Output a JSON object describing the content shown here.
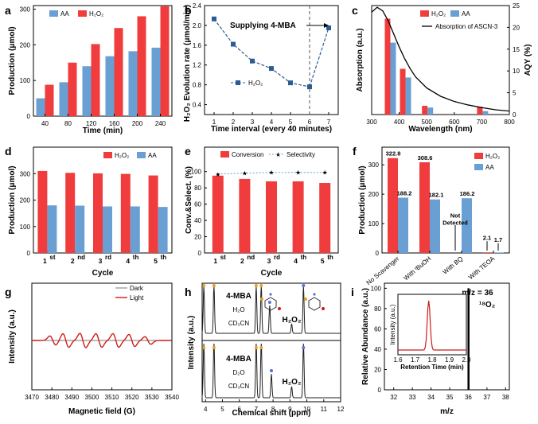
{
  "colors": {
    "red": "#f03c3c",
    "blue": "#6a9fd4",
    "navy": "#2c5d92",
    "dark": "#333333"
  },
  "chart_data": [
    {
      "panel": "a",
      "type": "bar",
      "xlabel": "Time (min)",
      "ylabel": "Production (μmol)",
      "categories": [
        "40",
        "80",
        "120",
        "160",
        "200",
        "240"
      ],
      "series": [
        {
          "name": "AA",
          "values": [
            50,
            95,
            140,
            168,
            182,
            192
          ],
          "color": "blue"
        },
        {
          "name": "H2O2",
          "values": [
            88,
            150,
            202,
            247,
            280,
            308
          ],
          "color": "red"
        }
      ],
      "legend": [
        "AA",
        "H₂O₂"
      ],
      "ylim": [
        0,
        300
      ],
      "yticks": [
        "0",
        "100",
        "200",
        "300"
      ]
    },
    {
      "panel": "b",
      "type": "line",
      "xlabel": "Time interval (every 40 minutes)",
      "ylabel": "H₂O₂ Evolution rate (μmol/min)",
      "x": [
        1,
        2,
        3,
        4,
        5,
        6,
        7
      ],
      "series": [
        {
          "name": "H2O2",
          "values": [
            2.13,
            1.62,
            1.28,
            1.13,
            0.84,
            0.76,
            1.95
          ]
        }
      ],
      "legend": "H₂O₂",
      "annotation": "Supplying 4-MBA",
      "annotation_x": 6,
      "xlim": [
        0.5,
        7.5
      ],
      "ylim": [
        0.2,
        2.4
      ],
      "yticks": [
        "0.4",
        "0.8",
        "1.2",
        "1.6",
        "2.0",
        "2.4"
      ],
      "xticks": [
        "1",
        "2",
        "3",
        "4",
        "5",
        "6",
        "7"
      ]
    },
    {
      "panel": "c",
      "type": "bar",
      "xlabel": "Wavelength (nm)",
      "ylabel": "Absorption (a.u.)",
      "y2label": "AQY (%)",
      "bars": [
        {
          "wavelength": 365,
          "h2o2": 22.0,
          "aa": 16.5
        },
        {
          "wavelength": 420,
          "h2o2": 10.5,
          "aa": 8.5
        },
        {
          "wavelength": 500,
          "h2o2": 2.0,
          "aa": 1.6
        },
        {
          "wavelength": 700,
          "h2o2": 1.8,
          "aa": 0.8
        }
      ],
      "absorption_curve": {
        "name": "Absorption of ASCN-3",
        "x": [
          300,
          320,
          340,
          360,
          380,
          400,
          420,
          440,
          460,
          500,
          550,
          600,
          650,
          700,
          750,
          800
        ],
        "y": [
          23.5,
          24.6,
          23.8,
          21.5,
          18.5,
          15.5,
          12.8,
          10.5,
          8.6,
          6.1,
          4.2,
          3.0,
          2.2,
          1.6,
          1.1,
          0.8
        ]
      },
      "legend": [
        "H₂O₂",
        "AA",
        "Absorption of ASCN-3"
      ],
      "xlim": [
        300,
        800
      ],
      "y2lim": [
        0,
        25
      ],
      "xticks": [
        "300",
        "400",
        "500",
        "600",
        "700",
        "800"
      ],
      "y2ticks": [
        "0",
        "5",
        "10",
        "15",
        "20",
        "25"
      ]
    },
    {
      "panel": "d",
      "type": "bar",
      "xlabel": "Cycle",
      "ylabel": "Production (μmol)",
      "categories": [
        "1",
        "2",
        "3",
        "4",
        "5"
      ],
      "category_suffix": [
        "st",
        "nd",
        "rd",
        "th",
        "th"
      ],
      "series": [
        {
          "name": "H2O2",
          "values": [
            310,
            303,
            301,
            299,
            293
          ],
          "color": "red"
        },
        {
          "name": "AA",
          "values": [
            180,
            179,
            176,
            176,
            174
          ],
          "color": "blue"
        }
      ],
      "legend": [
        "H₂O₂",
        "AA"
      ],
      "ylim": [
        0,
        400
      ],
      "yticks": [
        "0",
        "100",
        "200",
        "300"
      ]
    },
    {
      "panel": "e",
      "type": "bar",
      "xlabel": "Cycle",
      "ylabel": "Conv.&Select. (%)",
      "categories": [
        "1",
        "2",
        "3",
        "4",
        "5"
      ],
      "category_suffix": [
        "st",
        "nd",
        "rd",
        "th",
        "th"
      ],
      "conversion": [
        95,
        91,
        88,
        88,
        86
      ],
      "selectivity": [
        97,
        98,
        99,
        99,
        99
      ],
      "legend": [
        "Conversion",
        "Selectivity"
      ],
      "ylim": [
        0,
        130
      ],
      "yticks": [
        "0",
        "20",
        "40",
        "60",
        "80",
        "100"
      ]
    },
    {
      "panel": "f",
      "type": "bar",
      "ylabel": "Production (μmol)",
      "categories": [
        "No Scavenger",
        "With ᵗBuOH",
        "With BQ",
        "With TEOA"
      ],
      "h2o2": [
        322.8,
        308.6,
        0,
        2.1
      ],
      "aa": [
        188.2,
        182.1,
        186.2,
        1.7
      ],
      "h2o2_labels": [
        "322.8",
        "308.6",
        "",
        "2.1"
      ],
      "aa_labels": [
        "188.2",
        "182.1",
        "186.2",
        "1.7"
      ],
      "not_detected": "Not\nDetected",
      "legend": [
        "H₂O₂",
        "AA"
      ],
      "ylim": [
        0,
        360
      ],
      "yticks": [
        "0",
        "100",
        "200",
        "300"
      ]
    },
    {
      "panel": "g",
      "type": "line",
      "xlabel": "Magnetic field (G)",
      "ylabel": "Intensity (a.u.)",
      "legend": [
        "Dark",
        "Light"
      ],
      "xlim": [
        3470,
        3540
      ],
      "xticks": [
        "3470",
        "3480",
        "3490",
        "3500",
        "3510",
        "3520",
        "3530",
        "3540"
      ]
    },
    {
      "panel": "h",
      "type": "line",
      "xlabel": "Chemical shift (ppm)",
      "ylabel": "Intensity (a.u.)",
      "traces": [
        {
          "label": [
            "4-MBA",
            "H₂O",
            "CD₃CN"
          ],
          "peak": "H₂O₂"
        },
        {
          "label": [
            "4-MBA",
            "D₂O",
            "CD₃CN"
          ],
          "peak": "H₂O₂"
        }
      ],
      "xlim": [
        3.8,
        12
      ],
      "xticks": [
        "4",
        "5",
        "6",
        "7",
        "8",
        "9",
        "10",
        "11",
        "12"
      ]
    },
    {
      "panel": "i",
      "type": "bar",
      "xlabel": "m/z",
      "ylabel": "Relative Abundance (a.u.)",
      "peak": {
        "mz": 36,
        "value": 100
      },
      "annotation": "m/z = 36",
      "species": "¹⁸O₂",
      "xlim": [
        31.5,
        38.2
      ],
      "ylim": [
        0,
        105
      ],
      "xticks": [
        "32",
        "33",
        "34",
        "35",
        "36",
        "37",
        "38"
      ],
      "yticks": [
        "0",
        "20",
        "40",
        "60",
        "80",
        "100"
      ],
      "inset": {
        "xlabel": "Retention Time (min)",
        "ylabel": "Intensity (a.u.)",
        "xticks": [
          "1.6",
          "1.7",
          "1.8",
          "1.9",
          "2.0"
        ],
        "peak_x": 1.78
      }
    }
  ],
  "panel_letters": [
    "a",
    "b",
    "c",
    "d",
    "e",
    "f",
    "g",
    "h",
    "i"
  ]
}
